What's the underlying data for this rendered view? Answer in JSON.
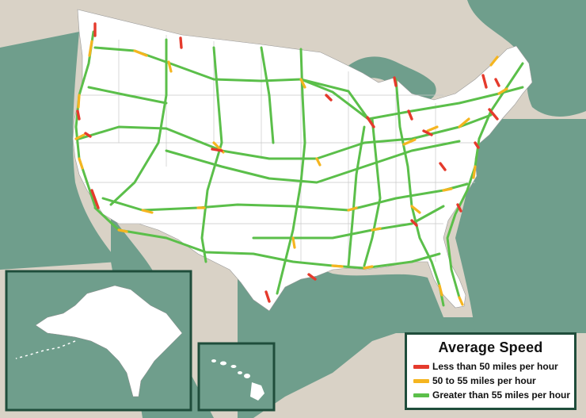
{
  "colors": {
    "background": "#d9d2c6",
    "water": "#6f9e8c",
    "land": "#ffffff",
    "inset_border": "#1f4d3b",
    "speed_low": "#e53a2c",
    "speed_mid": "#f5b520",
    "speed_high": "#5bbf4a"
  },
  "legend": {
    "title": "Average Speed",
    "items": [
      {
        "label": "Less than 50 miles per hour",
        "color": "#e53a2c"
      },
      {
        "label": "50 to 55  miles per hour",
        "color": "#f5b520"
      },
      {
        "label": "Greater than 55 miles per hour",
        "color": "#5bbf4a"
      }
    ]
  },
  "insets": [
    "alaska",
    "hawaii"
  ]
}
